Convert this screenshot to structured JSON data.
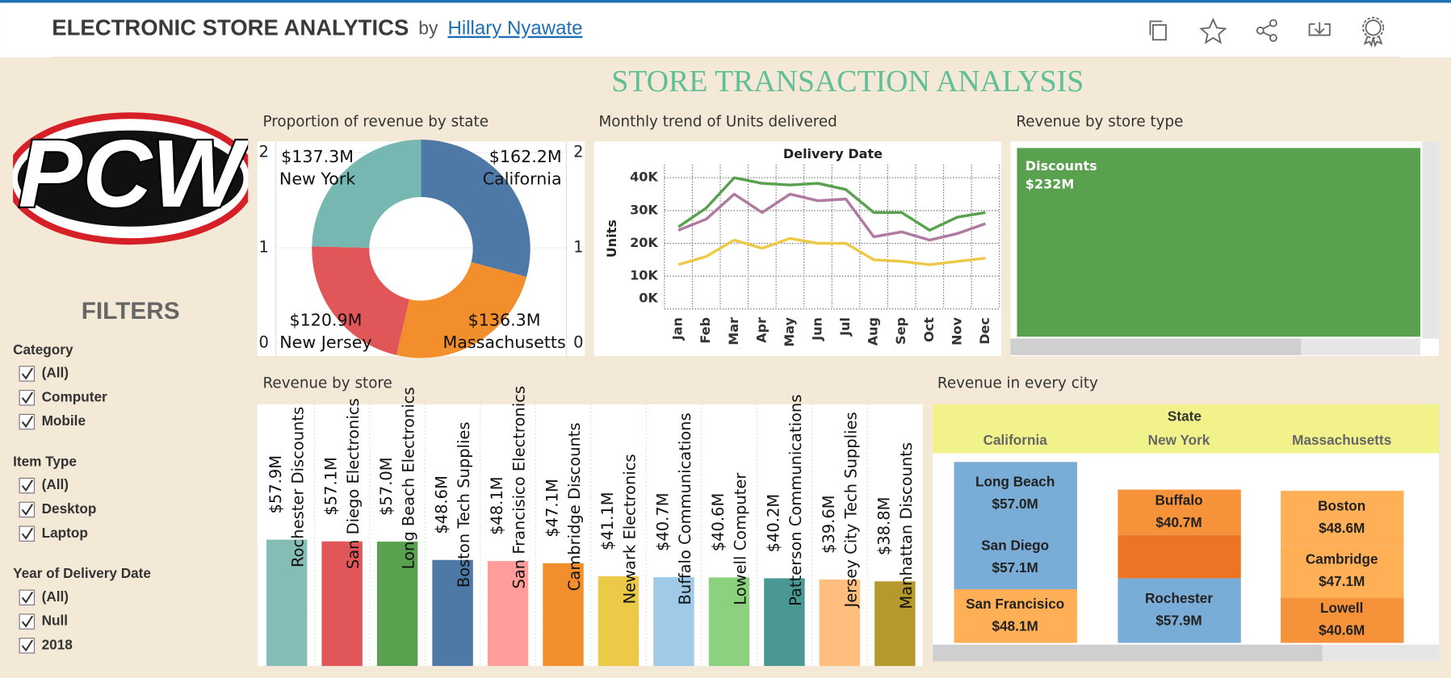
{
  "header": {
    "title": "ELECTRONIC STORE ANALYTICS",
    "by": "by",
    "author": "Hillary Nyawate"
  },
  "title": "STORE TRANSACTION ANALYSIS",
  "logo": "PCW",
  "filters": {
    "title": "FILTERS",
    "groups": [
      {
        "label": "Category",
        "options": [
          "(All)",
          "Computer",
          "Mobile"
        ]
      },
      {
        "label": "Item Type",
        "options": [
          "(All)",
          "Desktop",
          "Laptop"
        ]
      },
      {
        "label": "Year of Delivery Date",
        "options": [
          "(All)",
          "Null",
          "2018"
        ]
      }
    ]
  },
  "charts": {
    "pie": {
      "type": "donut",
      "title": "Proportion of revenue by state",
      "categories": [
        "California",
        "Massachusetts",
        "New Jersey",
        "New York"
      ],
      "values": [
        162.2,
        136.3,
        120.9,
        137.3
      ],
      "value_labels": [
        "$162.2M",
        "$136.3M",
        "$120.9M",
        "$137.3M"
      ],
      "colors": [
        "#4e79a7",
        "#f28e2b",
        "#e15759",
        "#76b7b2"
      ],
      "ylim": [
        0,
        2
      ],
      "yticks": [
        0,
        1,
        2
      ]
    },
    "line": {
      "type": "line",
      "title": "Monthly trend of Units delivered",
      "x_header": "Delivery Date",
      "y_label": "Units",
      "categories": [
        "Jan",
        "Feb",
        "Mar",
        "Apr",
        "May",
        "Jun",
        "Jul",
        "Aug",
        "Sep",
        "Oct",
        "Nov",
        "Dec"
      ],
      "series": [
        {
          "color": "#59a14f",
          "values": [
            25000,
            30800,
            40000,
            38300,
            37800,
            38300,
            36400,
            29400,
            29400,
            24000,
            28000,
            29400
          ]
        },
        {
          "color": "#b07aa1",
          "values": [
            24000,
            27400,
            35000,
            29400,
            35000,
            33000,
            33500,
            22000,
            23500,
            21000,
            23000,
            26000
          ]
        },
        {
          "color": "#edc948",
          "values": [
            13500,
            16000,
            21000,
            18500,
            21500,
            20000,
            20000,
            15000,
            14500,
            13500,
            14500,
            15500
          ]
        }
      ],
      "ylim": [
        0,
        44000
      ],
      "yticks": [
        {
          "value": 0,
          "label": "0K"
        },
        {
          "value": 10000,
          "label": "10K"
        },
        {
          "value": 20000,
          "label": "20K"
        },
        {
          "value": 30000,
          "label": "30K"
        },
        {
          "value": 40000,
          "label": "40K"
        }
      ],
      "grid": true
    },
    "store_type": {
      "type": "treemap",
      "title": "Revenue by store type",
      "categories": [
        "Discounts"
      ],
      "values": [
        232
      ],
      "value_labels": [
        "$232M"
      ],
      "colors": [
        "#59a14f"
      ]
    },
    "stores": {
      "type": "bar",
      "title": "Revenue by store",
      "categories": [
        "Rochester Discounts",
        "San Diego Electronics",
        "Long Beach Electronics",
        "Boston Tech Supplies",
        "San Francisico Electronics",
        "Cambridge Discounts",
        "Newark Electronics",
        "Buffalo Communications",
        "Lowell Computer",
        "Patterson Communications",
        "Jersey City Tech Supplies",
        "Manhattan Discounts"
      ],
      "values": [
        57.9,
        57.1,
        57.0,
        48.6,
        48.1,
        47.1,
        41.1,
        40.7,
        40.6,
        40.2,
        39.6,
        38.8
      ],
      "value_labels": [
        "$57.9M",
        "$57.1M",
        "$57.0M",
        "$48.6M",
        "$48.1M",
        "$47.1M",
        "$41.1M",
        "$40.7M",
        "$40.6M",
        "$40.2M",
        "$39.6M",
        "$38.8M"
      ],
      "colors": [
        "#86bcb6",
        "#e15759",
        "#59a14f",
        "#4e79a7",
        "#ff9d9a",
        "#f28e2b",
        "#edc948",
        "#a0cbe8",
        "#8cd17d",
        "#499894",
        "#ffbe7d",
        "#b6992d"
      ],
      "ylim": [
        0,
        120
      ]
    },
    "cities": {
      "type": "stacked-bar",
      "title": "Revenue in every city",
      "header": "State",
      "ylim": [
        0,
        170
      ],
      "states": [
        {
          "name": "California",
          "cities": [
            {
              "name": "San Francisico",
              "value": 48.1,
              "value_label": "$48.1M",
              "color": "#ffb057"
            },
            {
              "name": "San Diego",
              "value": 57.1,
              "value_label": "$57.1M",
              "color": "#79acd6"
            },
            {
              "name": "Long Beach",
              "value": 57.0,
              "value_label": "$57.0M",
              "color": "#79acd6"
            }
          ]
        },
        {
          "name": "New York",
          "cities": [
            {
              "name": "Rochester",
              "value": 57.9,
              "value_label": "$57.9M",
              "color": "#79acd6"
            },
            {
              "value": 38.8,
              "color": "#ec7525"
            },
            {
              "name": "Buffalo",
              "value": 40.7,
              "value_label": "$40.7M",
              "color": "#f5923a"
            }
          ]
        },
        {
          "name": "Massachusetts",
          "cities": [
            {
              "name": "Lowell",
              "value": 40.6,
              "value_label": "$40.6M",
              "color": "#f5923a"
            },
            {
              "name": "Cambridge",
              "value": 47.1,
              "value_label": "$47.1M",
              "color": "#ffb057"
            },
            {
              "name": "Boston",
              "value": 48.6,
              "value_label": "$48.6M",
              "color": "#ffb057"
            }
          ]
        }
      ]
    }
  }
}
